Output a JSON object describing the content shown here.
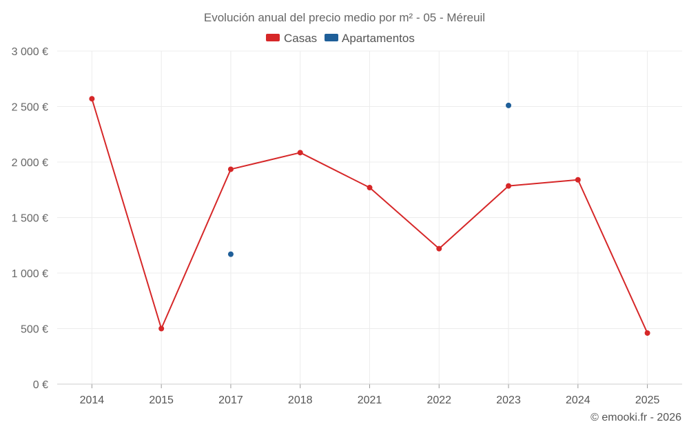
{
  "chart_data": {
    "type": "line",
    "title": "Evolución anual del precio medio por m² - 05 - Méreuil",
    "categories": [
      "2014",
      "2015",
      "2017",
      "2018",
      "2021",
      "2022",
      "2023",
      "2024",
      "2025"
    ],
    "series": [
      {
        "name": "Casas",
        "color": "#d62728",
        "values": [
          2570,
          500,
          1935,
          2085,
          1770,
          1220,
          1785,
          1840,
          460
        ]
      },
      {
        "name": "Apartamentos",
        "color": "#1f5f99",
        "values": [
          null,
          null,
          1170,
          null,
          null,
          null,
          2510,
          null,
          null
        ]
      }
    ],
    "ylim": [
      0,
      3000
    ],
    "yticks": [
      0,
      500,
      1000,
      1500,
      2000,
      2500,
      3000
    ],
    "ytick_labels": [
      "0 €",
      "500 €",
      "1 000 €",
      "1 500 €",
      "2 000 €",
      "2 500 €",
      "3 000 €"
    ],
    "xlabel": "",
    "ylabel": "",
    "grid": true,
    "legend_position": "top-center",
    "credit": "© emooki.fr - 2026"
  }
}
